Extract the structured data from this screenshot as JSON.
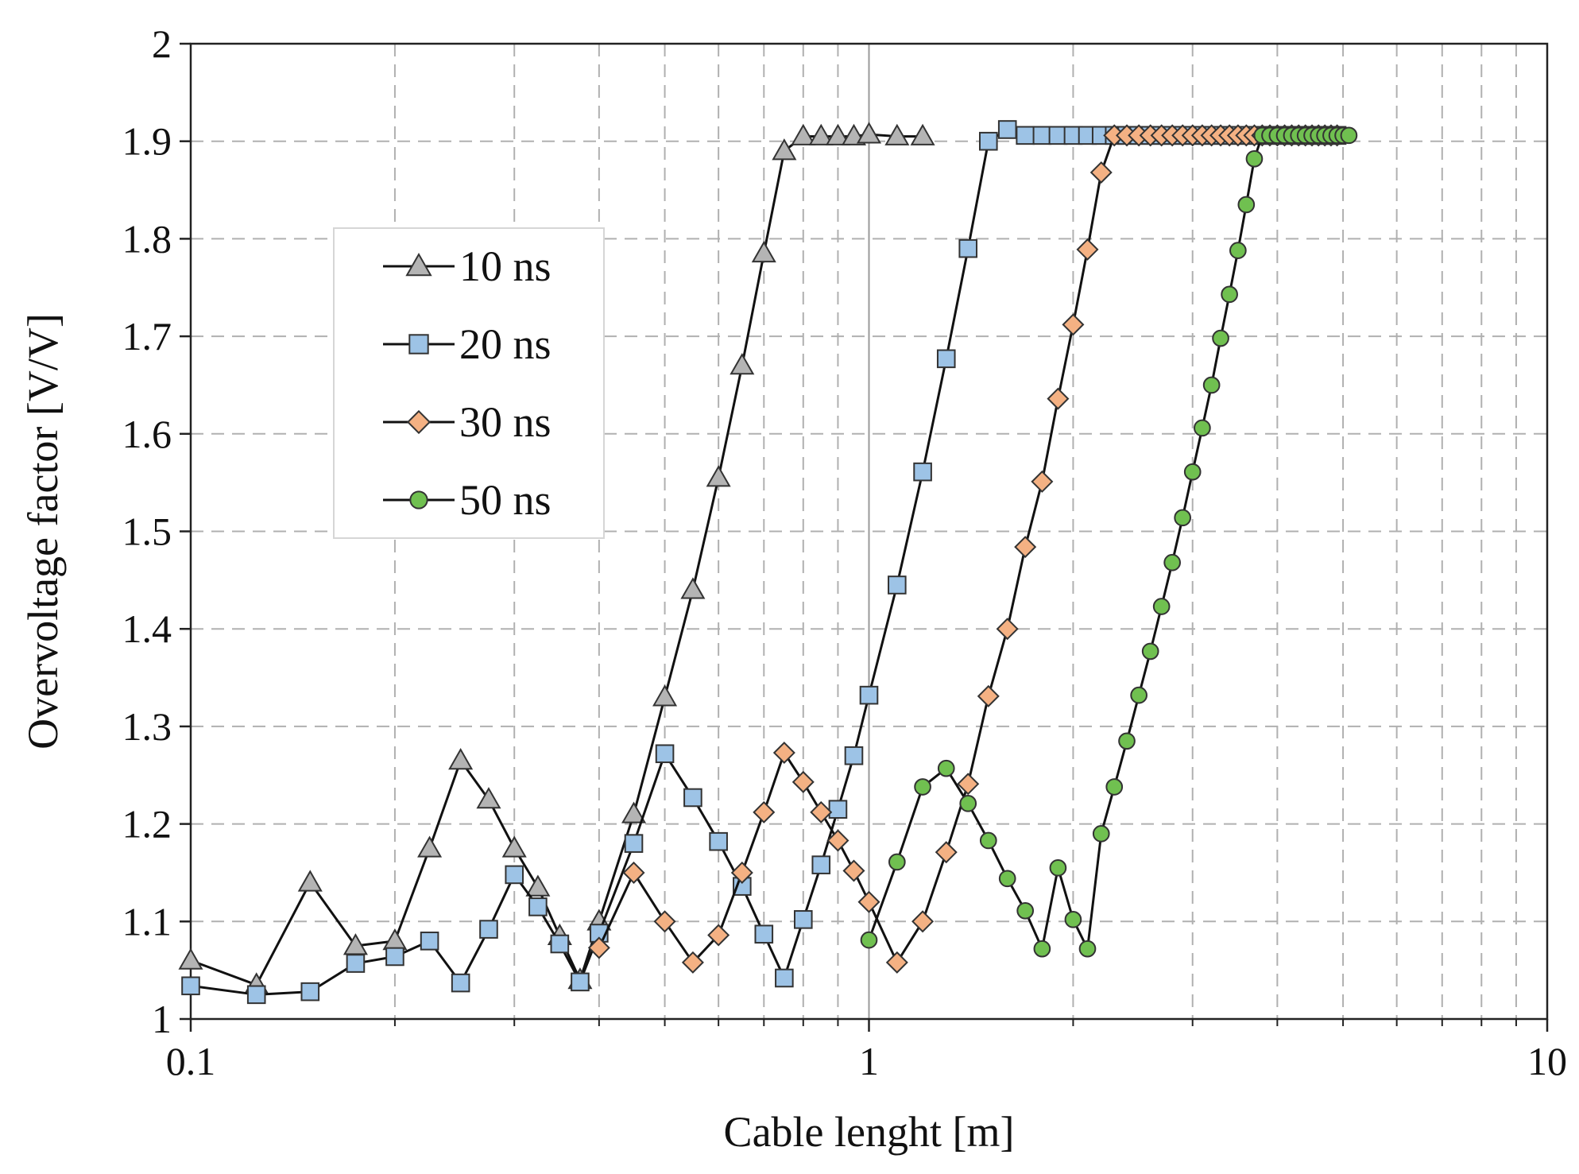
{
  "chart_data": {
    "type": "line",
    "xlabel": "Cable lenght [m]",
    "ylabel": "Overvoltage factor [V/V]",
    "x_scale": "log",
    "xlim": [
      0.1,
      10
    ],
    "ylim": [
      1,
      2
    ],
    "x_ticks": [
      "0.1",
      "1",
      "10"
    ],
    "y_ticks": [
      "1",
      "1.1",
      "1.2",
      "1.3",
      "1.4",
      "1.5",
      "1.6",
      "1.7",
      "1.8",
      "1.9",
      "2"
    ],
    "grid": true,
    "legend_position": "upper-left",
    "series": [
      {
        "name": "10 ns",
        "marker": "triangle",
        "color": "#b4b4b4",
        "x": [
          0.1,
          0.125,
          0.15,
          0.175,
          0.2,
          0.225,
          0.25,
          0.275,
          0.3,
          0.325,
          0.35,
          0.375,
          0.4,
          0.45,
          0.5,
          0.55,
          0.6,
          0.65,
          0.7,
          0.75,
          0.8,
          0.85,
          0.9,
          0.95,
          1.0,
          1.1,
          1.2
        ],
        "y": [
          1.06,
          1.035,
          1.14,
          1.075,
          1.08,
          1.175,
          1.265,
          1.225,
          1.175,
          1.135,
          1.085,
          1.04,
          1.1,
          1.21,
          1.33,
          1.44,
          1.555,
          1.67,
          1.785,
          1.89,
          1.905,
          1.905,
          1.905,
          1.905,
          1.907,
          1.905,
          1.905
        ]
      },
      {
        "name": "20 ns",
        "marker": "square",
        "color": "#9dc3e6",
        "x": [
          0.1,
          0.125,
          0.15,
          0.175,
          0.2,
          0.225,
          0.25,
          0.275,
          0.3,
          0.325,
          0.35,
          0.375,
          0.4,
          0.45,
          0.5,
          0.55,
          0.6,
          0.65,
          0.7,
          0.75,
          0.8,
          0.85,
          0.9,
          0.95,
          1.0,
          1.1,
          1.2,
          1.3,
          1.4,
          1.5,
          1.6,
          1.7,
          1.8,
          1.9,
          2.0,
          2.1,
          2.2,
          2.3,
          2.4,
          2.5,
          2.6,
          2.7,
          2.8,
          2.9,
          3.0,
          3.1,
          3.2,
          3.3,
          3.4,
          3.5,
          3.6,
          3.7,
          3.8,
          3.9,
          4.0,
          4.1,
          4.2,
          4.3,
          4.4,
          4.5,
          4.6,
          4.7,
          4.8,
          4.9
        ],
        "y": [
          1.034,
          1.025,
          1.028,
          1.057,
          1.064,
          1.08,
          1.037,
          1.092,
          1.148,
          1.115,
          1.077,
          1.038,
          1.088,
          1.18,
          1.272,
          1.227,
          1.182,
          1.136,
          1.087,
          1.042,
          1.102,
          1.158,
          1.215,
          1.27,
          1.332,
          1.445,
          1.561,
          1.677,
          1.79,
          1.9,
          1.912,
          1.906,
          1.906,
          1.906,
          1.906,
          1.906,
          1.906,
          1.906,
          1.906,
          1.906,
          1.906,
          1.906,
          1.906,
          1.906,
          1.906,
          1.906,
          1.906,
          1.906,
          1.906,
          1.906,
          1.906,
          1.906,
          1.906,
          1.906,
          1.906,
          1.906,
          1.906,
          1.906,
          1.906,
          1.906,
          1.906,
          1.906,
          1.906,
          1.906
        ]
      },
      {
        "name": "30 ns",
        "marker": "diamond",
        "color": "#f4b183",
        "x": [
          0.4,
          0.45,
          0.5,
          0.55,
          0.6,
          0.65,
          0.7,
          0.75,
          0.8,
          0.85,
          0.9,
          0.95,
          1.0,
          1.1,
          1.2,
          1.3,
          1.4,
          1.5,
          1.6,
          1.7,
          1.8,
          1.9,
          2.0,
          2.1,
          2.2,
          2.3,
          2.4,
          2.5,
          2.6,
          2.7,
          2.8,
          2.9,
          3.0,
          3.1,
          3.2,
          3.3,
          3.4,
          3.5,
          3.6,
          3.7,
          3.8,
          3.9,
          4.0,
          4.1,
          4.2,
          4.3,
          4.4,
          4.5,
          4.6,
          4.7,
          4.8,
          4.9
        ],
        "y": [
          1.073,
          1.15,
          1.1,
          1.058,
          1.086,
          1.15,
          1.212,
          1.273,
          1.243,
          1.212,
          1.183,
          1.152,
          1.12,
          1.058,
          1.1,
          1.171,
          1.241,
          1.331,
          1.4,
          1.484,
          1.551,
          1.636,
          1.712,
          1.789,
          1.868,
          1.906,
          1.906,
          1.906,
          1.906,
          1.906,
          1.906,
          1.906,
          1.906,
          1.906,
          1.906,
          1.906,
          1.906,
          1.906,
          1.906,
          1.906,
          1.906,
          1.906,
          1.906,
          1.906,
          1.906,
          1.906,
          1.906,
          1.906,
          1.906,
          1.906,
          1.906,
          1.906
        ]
      },
      {
        "name": "50 ns",
        "marker": "circle",
        "color": "#70c050",
        "x": [
          1.0,
          1.1,
          1.2,
          1.3,
          1.4,
          1.5,
          1.6,
          1.7,
          1.8,
          1.9,
          2.0,
          2.1,
          2.2,
          2.3,
          2.4,
          2.5,
          2.6,
          2.7,
          2.8,
          2.9,
          3.0,
          3.1,
          3.2,
          3.3,
          3.4,
          3.5,
          3.6,
          3.7,
          3.8,
          3.9,
          4.0,
          4.1,
          4.2,
          4.3,
          4.4,
          4.5,
          4.6,
          4.7,
          4.8,
          4.9,
          5.0,
          5.1
        ],
        "y": [
          1.081,
          1.161,
          1.238,
          1.257,
          1.221,
          1.183,
          1.144,
          1.111,
          1.072,
          1.155,
          1.102,
          1.072,
          1.19,
          1.238,
          1.285,
          1.332,
          1.377,
          1.423,
          1.468,
          1.514,
          1.561,
          1.606,
          1.65,
          1.698,
          1.743,
          1.788,
          1.835,
          1.882,
          1.906,
          1.906,
          1.906,
          1.906,
          1.906,
          1.906,
          1.906,
          1.906,
          1.906,
          1.906,
          1.906,
          1.906,
          1.906,
          1.906
        ]
      }
    ]
  }
}
